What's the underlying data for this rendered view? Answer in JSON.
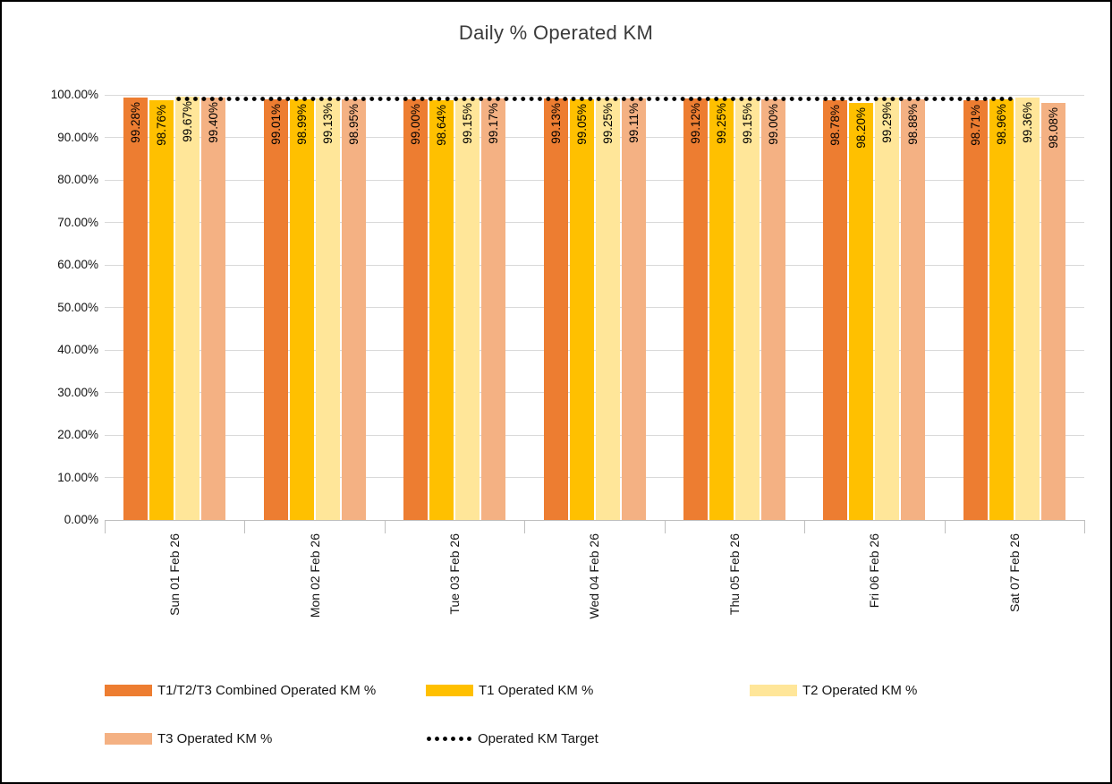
{
  "title": "Daily % Operated KM",
  "chart_data": {
    "type": "bar",
    "title": "Daily % Operated KM",
    "xlabel": "",
    "ylabel": "",
    "ylim": [
      0,
      100
    ],
    "grid": true,
    "legend_position": "bottom",
    "yticks": [
      "0.00%",
      "10.00%",
      "20.00%",
      "30.00%",
      "40.00%",
      "50.00%",
      "60.00%",
      "70.00%",
      "80.00%",
      "90.00%",
      "100.00%"
    ],
    "categories": [
      "Sun 01 Feb 26",
      "Mon 02 Feb 26",
      "Tue 03 Feb 26",
      "Wed 04 Feb 26",
      "Thu 05 Feb 26",
      "Fri 06 Feb 26",
      "Sat 07 Feb 26"
    ],
    "series": [
      {
        "name": "T1/T2/T3 Combined Operated KM %",
        "color": "#ED7D31",
        "values": [
          99.28,
          99.01,
          99.0,
          99.13,
          99.12,
          98.78,
          98.71
        ]
      },
      {
        "name": "T1 Operated KM %",
        "color": "#FFC000",
        "values": [
          98.76,
          98.99,
          98.64,
          99.05,
          99.25,
          98.2,
          98.96
        ]
      },
      {
        "name": "T2 Operated KM %",
        "color": "#FFE699",
        "values": [
          99.67,
          99.13,
          99.15,
          99.25,
          99.15,
          99.29,
          99.36
        ]
      },
      {
        "name": "T3 Operated KM %",
        "color": "#F4B183",
        "values": [
          99.4,
          98.95,
          99.17,
          99.11,
          99.0,
          98.88,
          98.08
        ]
      }
    ],
    "target_line": {
      "name": "Operated KM Target",
      "value": 99.0,
      "style": "dotted",
      "color": "#000000"
    },
    "data_label_format": "0.00%"
  }
}
